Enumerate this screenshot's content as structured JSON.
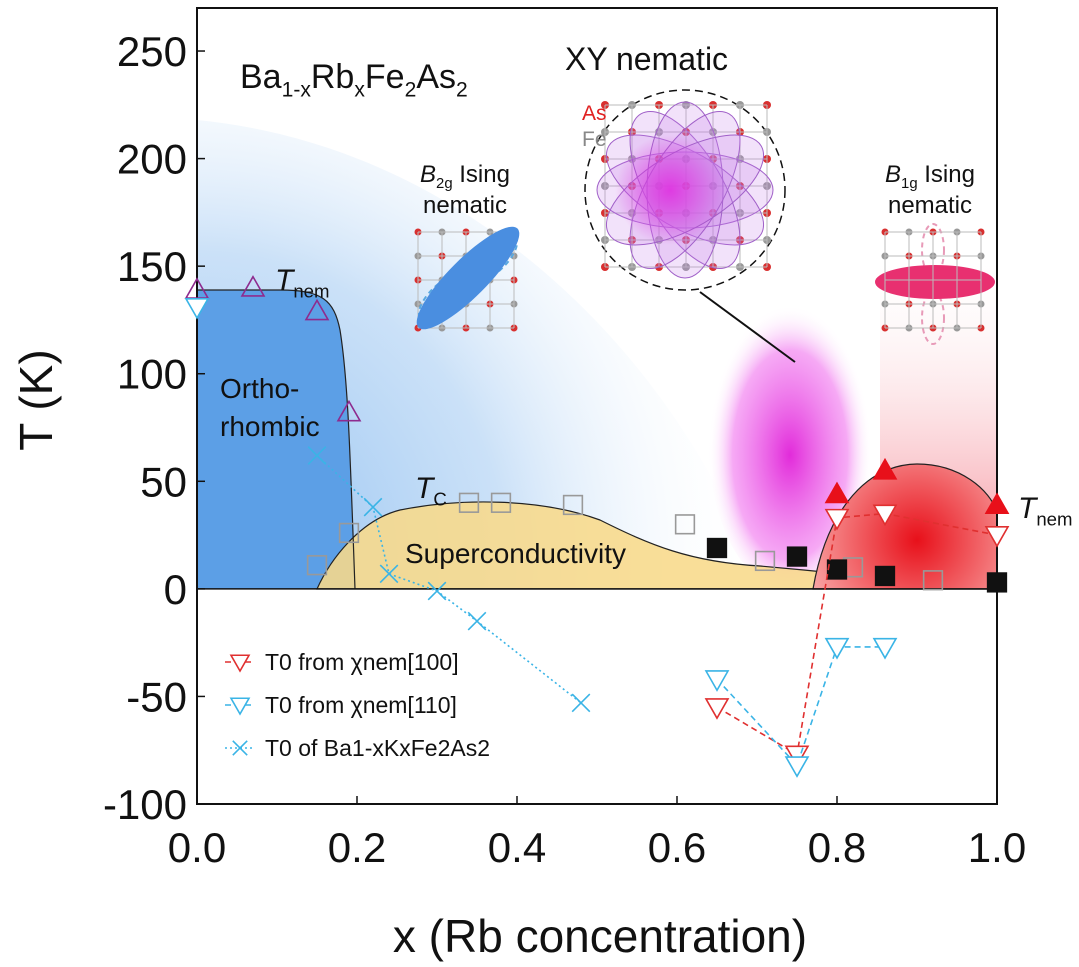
{
  "chart_data": {
    "type": "scatter",
    "xlabel": "x (Rb concentration)",
    "ylabel": "T (K)",
    "xlim": [
      0,
      1.0
    ],
    "ylim": [
      -100,
      270
    ],
    "xticks": [
      {
        "value": 0,
        "label": "0.0"
      },
      0.2,
      0.4,
      0.6,
      0.8,
      {
        "value": 1.0,
        "label": "1.0"
      }
    ],
    "yticks": [
      250,
      200,
      150,
      100,
      50,
      0,
      -50,
      -100
    ],
    "grid": false,
    "legend": "lower left",
    "series": [
      {
        "marker": "triangle-up",
        "color": "#8e2b8e",
        "facecolor": "none",
        "x": [
          0.0,
          0.07,
          0.15,
          0.19
        ],
        "values": [
          139,
          140,
          129,
          82
        ]
      },
      {
        "marker": "triangle-up",
        "color": "#e8101a",
        "facecolor": "#e8101a",
        "x": [
          0.8,
          0.86,
          1.0
        ],
        "values": [
          44,
          55,
          39
        ]
      },
      {
        "marker": "square",
        "color": "#999999",
        "facecolor": "none",
        "x": [
          0.15,
          0.19,
          0.34,
          0.38,
          0.47,
          0.61,
          0.71,
          0.82,
          0.92
        ],
        "values": [
          11,
          26,
          40,
          40,
          39,
          30,
          13,
          10,
          4
        ]
      },
      {
        "marker": "square",
        "color": "#111111",
        "facecolor": "#111111",
        "x": [
          0.65,
          0.75,
          0.8,
          0.86,
          1.0
        ],
        "values": [
          19,
          15,
          9,
          6,
          3
        ]
      },
      {
        "name": "T0 from χnem[100]",
        "marker": "triangle-down",
        "color": "#e03030",
        "facecolor": "#ffffff",
        "linestyle": "dashed",
        "x": [
          0.65,
          0.75,
          0.8,
          0.86,
          1.0
        ],
        "values": [
          -55,
          -77,
          33,
          35,
          25
        ]
      },
      {
        "name": "T0 from χnem[110]",
        "marker": "triangle-down",
        "color": "#3ab4e6",
        "facecolor": "#ffffff",
        "linestyle": "dashed",
        "x": [
          0.0,
          null,
          0.65,
          0.75,
          0.8,
          0.86
        ],
        "values": [
          131,
          null,
          -42,
          -82,
          -27,
          -27
        ]
      },
      {
        "name": "T0 of Ba1-xKxFe2As2",
        "marker": "x",
        "color": "#3ab4e6",
        "facecolor": "none",
        "linestyle": "dotted",
        "x": [
          0.15,
          0.22,
          0.24,
          0.3,
          0.35,
          0.48
        ],
        "values": [
          62,
          38,
          7,
          -1,
          -15,
          -53
        ]
      }
    ],
    "annotations": {
      "compound": [
        "Ba",
        "1-x",
        "Rb",
        "x",
        "Fe",
        "2",
        "As",
        "2"
      ],
      "xy": "XY nematic",
      "as": "As",
      "fe": "Fe",
      "b2g": [
        "B",
        "2g",
        " Ising"
      ],
      "b2g_line2": "nematic",
      "b1g": [
        "B",
        "1g",
        " Ising"
      ],
      "b1g_line2": "nematic",
      "tnem_left": [
        "T",
        "nem"
      ],
      "tnem_right": [
        "T",
        "nem"
      ],
      "ortho": [
        "Ortho-",
        "rhombic"
      ],
      "tc": [
        "T",
        "C"
      ],
      "sc": "Superconductivity"
    }
  }
}
